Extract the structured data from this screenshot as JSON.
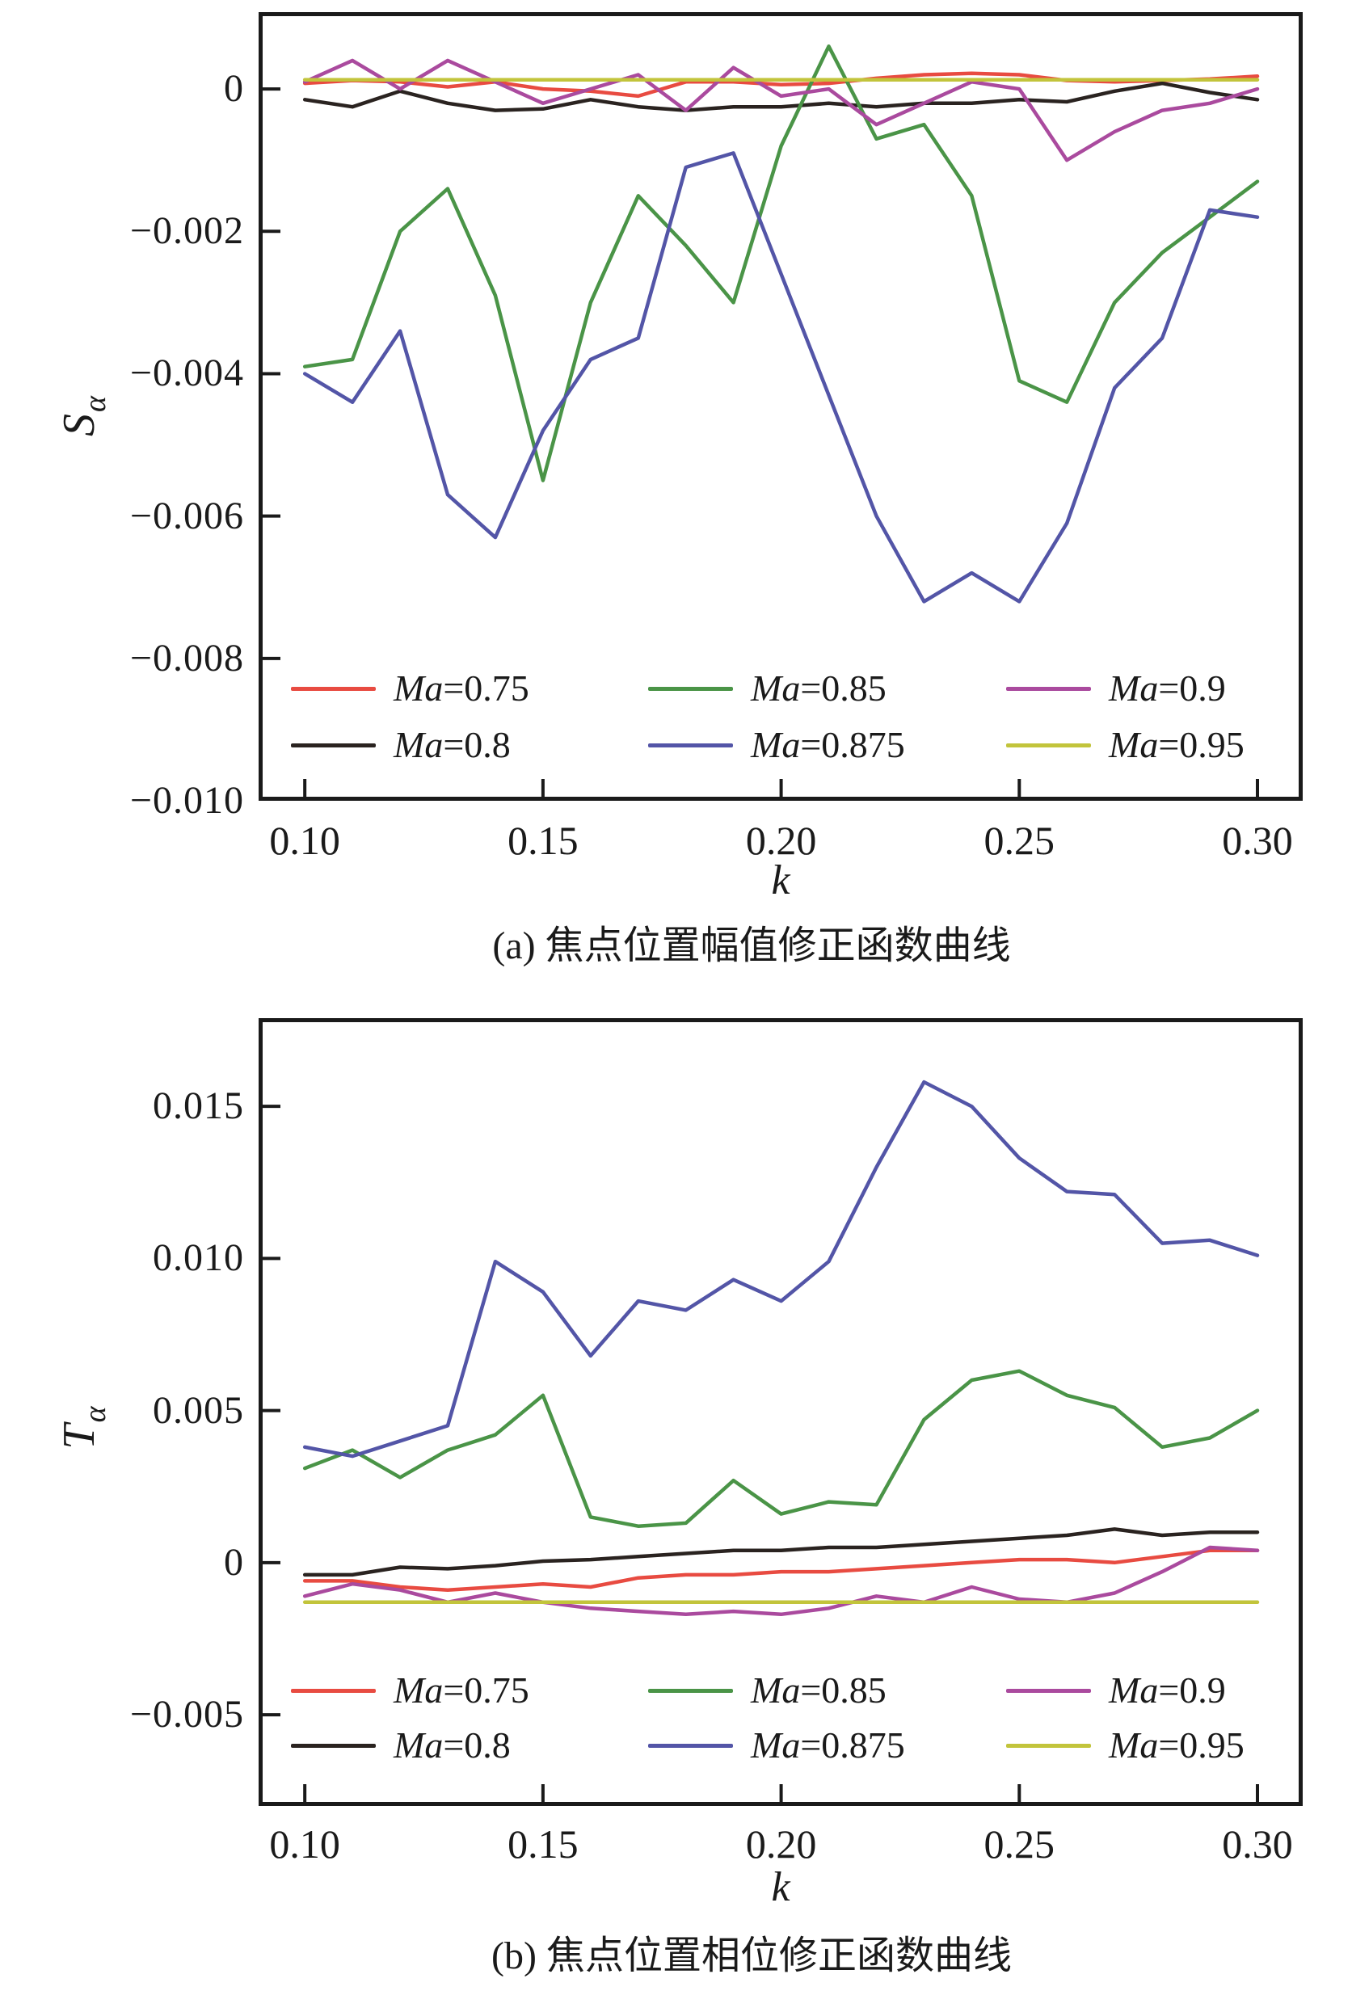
{
  "chart_data": [
    {
      "type": "line",
      "title": "(a) 焦点位置幅值修正函数曲线",
      "xlabel": "k",
      "ylabel": "S",
      "ylabel_subscript": "α",
      "grid": false,
      "legend_position": "inside-bottom",
      "xlim": [
        0.0903,
        0.3095
      ],
      "ylim": [
        -0.01,
        0.00108
      ],
      "x": [
        0.1,
        0.11,
        0.12,
        0.13,
        0.14,
        0.15,
        0.16,
        0.17,
        0.18,
        0.19,
        0.2,
        0.21,
        0.22,
        0.23,
        0.24,
        0.25,
        0.26,
        0.27,
        0.28,
        0.29,
        0.3
      ],
      "xticks": [
        {
          "v": 0.1,
          "label": "0.10"
        },
        {
          "v": 0.15,
          "label": "0.15"
        },
        {
          "v": 0.2,
          "label": "0.20"
        },
        {
          "v": 0.25,
          "label": "0.25"
        },
        {
          "v": 0.3,
          "label": "0.30"
        }
      ],
      "yticks": [
        {
          "v": 0,
          "label": "0"
        },
        {
          "v": -0.002,
          "label": "−0.002"
        },
        {
          "v": -0.004,
          "label": "−0.004"
        },
        {
          "v": -0.006,
          "label": "−0.006"
        },
        {
          "v": -0.008,
          "label": "−0.008"
        },
        {
          "v": -0.01,
          "label": "−0.010"
        }
      ],
      "series": [
        {
          "name": "Ma=0.75",
          "color": "#e84b41",
          "values": [
            8e-05,
            0.00012,
            0.0001,
            3e-05,
            0.0001,
            0.0,
            -3e-05,
            -0.0001,
            0.0001,
            0.0001,
            6e-05,
            8e-05,
            0.00015,
            0.0002,
            0.00022,
            0.0002,
            0.00012,
            0.0001,
            0.00012,
            0.00014,
            0.00018
          ]
        },
        {
          "name": "Ma=0.8",
          "color": "#2a2320",
          "values": [
            -0.00015,
            -0.00025,
            -3e-05,
            -0.0002,
            -0.0003,
            -0.00028,
            -0.00015,
            -0.00025,
            -0.0003,
            -0.00025,
            -0.00025,
            -0.0002,
            -0.00025,
            -0.0002,
            -0.0002,
            -0.00015,
            -0.00018,
            -3e-05,
            8e-05,
            -5e-05,
            -0.00015
          ]
        },
        {
          "name": "Ma=0.85",
          "color": "#4a9447",
          "values": [
            -0.0039,
            -0.0038,
            -0.002,
            -0.0014,
            -0.0029,
            -0.0055,
            -0.003,
            -0.0015,
            -0.0022,
            -0.003,
            -0.0008,
            0.0006,
            -0.0007,
            -0.0005,
            -0.0015,
            -0.0041,
            -0.0044,
            -0.003,
            -0.0023,
            -0.0018,
            -0.0013
          ]
        },
        {
          "name": "Ma=0.875",
          "color": "#5355a7",
          "values": [
            -0.004,
            -0.0044,
            -0.0034,
            -0.0057,
            -0.0063,
            -0.0048,
            -0.0038,
            -0.0035,
            -0.0011,
            -0.0009,
            -0.0026,
            -0.0043,
            -0.006,
            -0.0072,
            -0.0068,
            -0.0072,
            -0.0061,
            -0.0042,
            -0.0035,
            -0.0017,
            -0.0018
          ]
        },
        {
          "name": "Ma=0.9",
          "color": "#aa4a9e",
          "values": [
            0.0001,
            0.0004,
            0.0,
            0.0004,
            0.0001,
            -0.0002,
            0.0,
            0.0002,
            -0.0003,
            0.0003,
            -0.0001,
            0.0,
            -0.0005,
            -0.0002,
            0.0001,
            0.0,
            -0.001,
            -0.0006,
            -0.0003,
            -0.0002,
            0.0
          ]
        },
        {
          "name": "Ma=0.95",
          "color": "#c2c43b",
          "values": [
            0.00013,
            0.00013,
            0.00013,
            0.00013,
            0.00013,
            0.00013,
            0.00013,
            0.00013,
            0.00013,
            0.00013,
            0.00013,
            0.00013,
            0.00013,
            0.00013,
            0.00013,
            0.00013,
            0.00013,
            0.00013,
            0.00013,
            0.00013,
            0.00013
          ]
        }
      ]
    },
    {
      "type": "line",
      "title": "(b) 焦点位置相位修正函数曲线",
      "xlabel": "k",
      "ylabel": "T",
      "ylabel_subscript": "α",
      "grid": false,
      "legend_position": "inside-bottom",
      "xlim": [
        0.0903,
        0.3095
      ],
      "ylim": [
        -0.008,
        0.0179
      ],
      "x": [
        0.1,
        0.11,
        0.12,
        0.13,
        0.14,
        0.15,
        0.16,
        0.17,
        0.18,
        0.19,
        0.2,
        0.21,
        0.22,
        0.23,
        0.24,
        0.25,
        0.26,
        0.27,
        0.28,
        0.29,
        0.3
      ],
      "xticks": [
        {
          "v": 0.1,
          "label": "0.10"
        },
        {
          "v": 0.15,
          "label": "0.15"
        },
        {
          "v": 0.2,
          "label": "0.20"
        },
        {
          "v": 0.25,
          "label": "0.25"
        },
        {
          "v": 0.3,
          "label": "0.30"
        }
      ],
      "yticks": [
        {
          "v": 0.015,
          "label": "0.015"
        },
        {
          "v": 0.01,
          "label": "0.010"
        },
        {
          "v": 0.005,
          "label": "0.005"
        },
        {
          "v": 0,
          "label": "0"
        },
        {
          "v": -0.005,
          "label": "−0.005"
        }
      ],
      "series": [
        {
          "name": "Ma=0.75",
          "color": "#e84b41",
          "values": [
            -0.0006,
            -0.0006,
            -0.0008,
            -0.0009,
            -0.0008,
            -0.0007,
            -0.0008,
            -0.0005,
            -0.0004,
            -0.0004,
            -0.0003,
            -0.0003,
            -0.0002,
            -0.0001,
            0.0,
            0.0001,
            0.0001,
            0.0,
            0.0002,
            0.0004,
            0.0004
          ]
        },
        {
          "name": "Ma=0.8",
          "color": "#2a2320",
          "values": [
            -0.0004,
            -0.0004,
            -0.00015,
            -0.0002,
            -0.0001,
            5e-05,
            0.0001,
            0.0002,
            0.0003,
            0.0004,
            0.0004,
            0.0005,
            0.0005,
            0.0006,
            0.0007,
            0.0008,
            0.0009,
            0.0011,
            0.0009,
            0.001,
            0.001
          ]
        },
        {
          "name": "Ma=0.85",
          "color": "#4a9447",
          "values": [
            0.0031,
            0.0037,
            0.0028,
            0.0037,
            0.0042,
            0.0055,
            0.0015,
            0.0012,
            0.0013,
            0.0027,
            0.0016,
            0.002,
            0.0019,
            0.0047,
            0.006,
            0.0063,
            0.0055,
            0.0051,
            0.0038,
            0.0041,
            0.005
          ]
        },
        {
          "name": "Ma=0.875",
          "color": "#5355a7",
          "values": [
            0.0038,
            0.0035,
            0.004,
            0.0045,
            0.0099,
            0.0089,
            0.0068,
            0.0086,
            0.0083,
            0.0093,
            0.0086,
            0.0099,
            0.013,
            0.0158,
            0.015,
            0.0133,
            0.0122,
            0.0121,
            0.0105,
            0.0106,
            0.0101
          ]
        },
        {
          "name": "Ma=0.9",
          "color": "#aa4a9e",
          "values": [
            -0.0011,
            -0.0007,
            -0.0009,
            -0.0013,
            -0.001,
            -0.0013,
            -0.0015,
            -0.0016,
            -0.0017,
            -0.0016,
            -0.0017,
            -0.0015,
            -0.0011,
            -0.0013,
            -0.0008,
            -0.0012,
            -0.0013,
            -0.001,
            -0.0003,
            0.0005,
            0.0004
          ]
        },
        {
          "name": "Ma=0.95",
          "color": "#c2c43b",
          "values": [
            -0.0013,
            -0.0013,
            -0.0013,
            -0.0013,
            -0.0013,
            -0.0013,
            -0.0013,
            -0.0013,
            -0.0013,
            -0.0013,
            -0.0013,
            -0.0013,
            -0.0013,
            -0.0013,
            -0.0013,
            -0.0013,
            -0.0013,
            -0.0013,
            -0.0013,
            -0.0013,
            -0.0013
          ]
        }
      ]
    }
  ]
}
